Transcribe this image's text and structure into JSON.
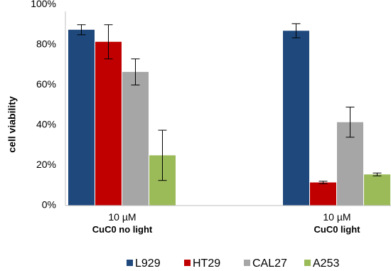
{
  "chart_data": {
    "type": "bar",
    "ylabel": "cell viability",
    "ylim": [
      0,
      100
    ],
    "y_ticks": [
      "0%",
      "20%",
      "40%",
      "60%",
      "80%",
      "100%"
    ],
    "y_tick_values": [
      0,
      20,
      40,
      60,
      80,
      100
    ],
    "grid": false,
    "legend_position": "bottom",
    "categories": [
      {
        "line1": "10 µM",
        "line2": "CuC0 no light"
      },
      {
        "line1": "10 µM",
        "line2": "CuC0 light"
      }
    ],
    "series": [
      {
        "name": "L929",
        "color": "#1f497d",
        "values": [
          87.5,
          87
        ],
        "errors": [
          2.5,
          3.5
        ]
      },
      {
        "name": "HT29",
        "color": "#c00000",
        "values": [
          81.5,
          11.5
        ],
        "errors": [
          8.5,
          0.6
        ]
      },
      {
        "name": "CAL27",
        "color": "#a6a6a6",
        "values": [
          66.5,
          41.5
        ],
        "errors": [
          6.5,
          7.5
        ]
      },
      {
        "name": "A253",
        "color": "#9bbb59",
        "values": [
          25,
          15.5
        ],
        "errors": [
          12.5,
          0.7
        ]
      }
    ]
  }
}
